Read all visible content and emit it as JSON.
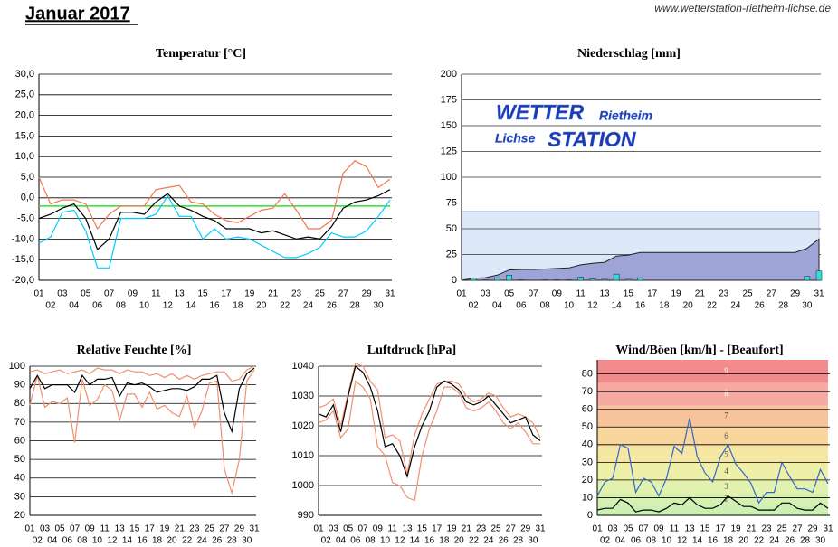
{
  "header": {
    "title": "Januar 2017",
    "url": "www.wetterstation-rietheim-lichse.de"
  },
  "chart_data": [
    {
      "type": "line",
      "title": "Temperatur [°C]",
      "categories": [
        "01",
        "02",
        "03",
        "04",
        "05",
        "06",
        "07",
        "08",
        "09",
        "10",
        "11",
        "12",
        "13",
        "14",
        "15",
        "16",
        "17",
        "18",
        "19",
        "20",
        "21",
        "22",
        "23",
        "24",
        "25",
        "26",
        "27",
        "28",
        "29",
        "30",
        "31"
      ],
      "series": [
        {
          "color": "#f07850",
          "values": [
            5,
            -1.5,
            -0.5,
            -0.5,
            -1.5,
            -7.5,
            -4,
            -2,
            -2,
            -2,
            2,
            2.5,
            3,
            -1,
            -1.5,
            -4,
            -5.5,
            -6,
            -4.5,
            -3,
            -2.5,
            1,
            -3,
            -7.5,
            -7.5,
            -5.5,
            6,
            9,
            7.5,
            2.5,
            4.5
          ]
        },
        {
          "color": "#00ccff",
          "values": [
            -11,
            -9.5,
            -3.5,
            -3,
            -8,
            -17,
            -17,
            -5,
            -5,
            -5,
            -4,
            0.5,
            -4.5,
            -4.5,
            -10,
            -7.5,
            -10,
            -9.5,
            -10,
            -11.5,
            -13,
            -14.5,
            -14.5,
            -13.5,
            -12,
            -8.5,
            -9.5,
            -9.5,
            -8,
            -4.5,
            -0.5
          ]
        },
        {
          "color": "#000000",
          "values": [
            -5,
            -4,
            -2.5,
            -1.5,
            -5,
            -12.5,
            -10,
            -3.5,
            -3.5,
            -4,
            -1,
            1,
            -2,
            -3,
            -4.5,
            -5.5,
            -7.5,
            -7.5,
            -7.5,
            -8.5,
            -8,
            -9,
            -10,
            -9.5,
            -10,
            -7,
            -2.5,
            -1,
            -0.5,
            0.5,
            2
          ]
        }
      ],
      "hline": {
        "value": -2,
        "color": "#33dd33"
      },
      "ylim": [
        -20,
        30
      ],
      "yticks": [
        {
          "value": -20,
          "label": "-20,0"
        },
        {
          "value": -15,
          "label": "-15,0"
        },
        {
          "value": -10,
          "label": "-10,0"
        },
        {
          "value": -5,
          "label": "-5,0"
        },
        {
          "value": 0,
          "label": "0,0"
        },
        {
          "value": 5,
          "label": "5,0"
        },
        {
          "value": 10,
          "label": "10,0"
        },
        {
          "value": 15,
          "label": "15,0"
        },
        {
          "value": 20,
          "label": "20,0"
        },
        {
          "value": 25,
          "label": "25,0"
        },
        {
          "value": 30,
          "label": "30,0"
        }
      ],
      "grid": true
    },
    {
      "type": "bar",
      "title": "Niederschlag [mm]",
      "categories": [
        "01",
        "02",
        "03",
        "04",
        "05",
        "06",
        "07",
        "08",
        "09",
        "10",
        "11",
        "12",
        "13",
        "14",
        "15",
        "16",
        "17",
        "18",
        "19",
        "20",
        "21",
        "22",
        "23",
        "24",
        "25",
        "26",
        "27",
        "28",
        "29",
        "30",
        "31"
      ],
      "values": [
        0,
        2,
        0.5,
        2.5,
        5,
        0.5,
        0,
        0.5,
        0.5,
        0.5,
        3,
        1.5,
        1,
        6,
        1,
        2.5,
        0,
        0,
        0,
        0,
        0,
        0,
        0,
        0,
        0,
        0,
        0,
        0,
        0,
        4,
        9
      ],
      "color": "#33dddd",
      "cumulative_color": "#9ea4d8",
      "highlight_range": [
        0,
        67
      ],
      "watermark": [
        "WETTER",
        "Rietheim",
        "Lichse",
        "STATION"
      ],
      "ylim": [
        0,
        200
      ],
      "yticks": [
        0,
        25,
        50,
        75,
        100,
        125,
        150,
        175,
        200
      ],
      "grid": true
    },
    {
      "type": "line",
      "title": "Relative Feuchte [%]",
      "categories": [
        "01",
        "02",
        "03",
        "04",
        "05",
        "06",
        "07",
        "08",
        "09",
        "10",
        "11",
        "12",
        "13",
        "14",
        "15",
        "16",
        "17",
        "18",
        "19",
        "20",
        "21",
        "22",
        "23",
        "24",
        "25",
        "26",
        "27",
        "28",
        "29",
        "30",
        "31"
      ],
      "series": [
        {
          "color": "#f09070",
          "values": [
            97,
            98,
            96,
            97,
            98,
            96,
            97,
            98,
            96,
            99,
            98,
            98,
            96,
            98,
            97,
            97,
            95,
            96,
            94,
            96,
            93,
            95,
            93,
            95,
            96,
            97,
            97,
            92,
            93,
            98,
            100
          ]
        },
        {
          "color": "#f09070",
          "values": [
            79,
            95,
            78,
            81,
            80,
            83,
            59,
            93,
            79,
            82,
            90,
            87,
            71,
            85,
            85,
            78,
            86,
            77,
            79,
            75,
            73,
            84,
            67,
            76,
            91,
            92,
            45,
            32,
            50,
            92,
            98
          ]
        },
        {
          "color": "#000000",
          "values": [
            88,
            95,
            88,
            90,
            90,
            90,
            86,
            95,
            90,
            93,
            93,
            94,
            84,
            91,
            90,
            91,
            89,
            86,
            87,
            88,
            88,
            87,
            89,
            93,
            93,
            95,
            75,
            65,
            88,
            96,
            99
          ]
        }
      ],
      "ylim": [
        20,
        100
      ],
      "yticks": [
        20,
        30,
        40,
        50,
        60,
        70,
        80,
        90,
        100
      ],
      "grid": true
    },
    {
      "type": "line",
      "title": "Luftdruck [hPa]",
      "categories": [
        "01",
        "02",
        "03",
        "04",
        "05",
        "06",
        "07",
        "08",
        "09",
        "10",
        "11",
        "12",
        "13",
        "14",
        "15",
        "16",
        "17",
        "18",
        "19",
        "20",
        "21",
        "22",
        "23",
        "24",
        "25",
        "26",
        "27",
        "28",
        "29",
        "30",
        "31"
      ],
      "series": [
        {
          "color": "#f09070",
          "values": [
            1026,
            1027,
            1029,
            1020,
            1031,
            1041,
            1040,
            1035,
            1032,
            1016,
            1017,
            1015,
            1004,
            1017,
            1024,
            1029,
            1034,
            1035,
            1035,
            1034,
            1030,
            1028,
            1029,
            1031,
            1030,
            1026,
            1023,
            1024,
            1023,
            1021,
            1016
          ]
        },
        {
          "color": "#f09070",
          "values": [
            1021,
            1022,
            1025,
            1016,
            1019,
            1035,
            1033,
            1029,
            1013,
            1010,
            1001,
            1000,
            996,
            995,
            1010,
            1019,
            1025,
            1033,
            1033,
            1031,
            1026,
            1025,
            1026,
            1028,
            1025,
            1021,
            1019,
            1021,
            1018,
            1014,
            1014
          ]
        },
        {
          "color": "#000000",
          "values": [
            1024,
            1023,
            1027,
            1018,
            1030,
            1040,
            1038,
            1033,
            1025,
            1013,
            1014,
            1010,
            1003,
            1013,
            1020,
            1025,
            1033,
            1035,
            1034,
            1032,
            1028,
            1027,
            1028,
            1030,
            1027,
            1024,
            1021,
            1022,
            1023,
            1017,
            1015
          ]
        }
      ],
      "ylim": [
        990,
        1040
      ],
      "yticks": [
        990,
        1000,
        1010,
        1020,
        1030,
        1040
      ],
      "grid": true
    },
    {
      "type": "line",
      "title": "Wind/Böen [km/h] - [Beaufort]",
      "categories": [
        "01",
        "02",
        "03",
        "04",
        "05",
        "06",
        "07",
        "08",
        "09",
        "10",
        "11",
        "12",
        "13",
        "14",
        "15",
        "16",
        "17",
        "18",
        "19",
        "20",
        "21",
        "22",
        "23",
        "24",
        "25",
        "26",
        "27",
        "28",
        "29",
        "30",
        "31"
      ],
      "beaufort": [
        {
          "from": 0,
          "to": 6,
          "color": "#ccefb4"
        },
        {
          "label": "2",
          "from": 6,
          "to": 12,
          "color": "#d6f0b0"
        },
        {
          "label": "3",
          "from": 12,
          "to": 20,
          "color": "#e2f1ad"
        },
        {
          "label": "4",
          "from": 20,
          "to": 29,
          "color": "#eef0a8"
        },
        {
          "label": "5",
          "from": 29,
          "to": 39,
          "color": "#f5e6a2"
        },
        {
          "label": "6",
          "from": 39,
          "to": 50,
          "color": "#f8d69c"
        },
        {
          "label": "7",
          "from": 50,
          "to": 62,
          "color": "#f8c29a"
        },
        {
          "label": "8",
          "from": 62,
          "to": 75,
          "color": "#f6aba2"
        },
        {
          "label": "9",
          "from": 75,
          "to": 88,
          "color": "#f28c8c"
        }
      ],
      "series": [
        {
          "color": "#3366cc",
          "values": [
            11,
            19,
            21,
            40,
            38,
            13,
            21,
            19,
            11,
            21,
            39,
            35,
            55,
            33,
            24,
            19,
            33,
            40,
            29,
            24,
            18,
            7,
            13,
            13,
            30,
            22,
            15,
            15,
            13,
            26,
            18
          ]
        },
        {
          "color": "#000000",
          "values": [
            3,
            4,
            4,
            9,
            7,
            2,
            3,
            3,
            2,
            4,
            7,
            6,
            10,
            6,
            4,
            4,
            6,
            11,
            8,
            5,
            5,
            3,
            3,
            3,
            7,
            7,
            4,
            3,
            3,
            7,
            4
          ]
        }
      ],
      "ylim": [
        0,
        88
      ],
      "yticks": [
        0,
        10,
        20,
        30,
        40,
        50,
        60,
        70,
        80
      ],
      "grid": true
    }
  ]
}
